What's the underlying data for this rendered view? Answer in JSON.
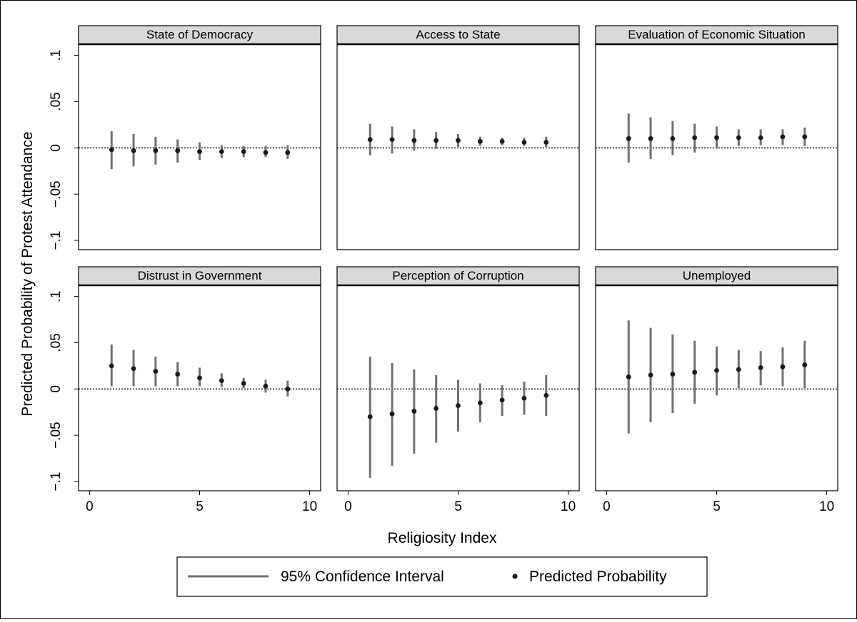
{
  "chart_data": {
    "type": "scatter",
    "layout": "small-multiples",
    "xlabel": "Religiosity Index",
    "ylabel": "Predicted Probability of Protest Attendance",
    "xlim": [
      -0.5,
      10.5
    ],
    "ylim": [
      -0.11,
      0.112
    ],
    "xticks": [
      0,
      5,
      10
    ],
    "xtick_labels": [
      "0",
      "5",
      "10"
    ],
    "yticks": [
      -0.1,
      -0.05,
      0,
      0.05,
      0.1
    ],
    "ytick_labels": [
      "−.1",
      "−.05",
      "0",
      ".05",
      ".1"
    ],
    "reference_line": 0,
    "legend": {
      "position": "bottom",
      "entries": [
        "95% Confidence Interval",
        "Predicted Probability"
      ]
    },
    "colors": {
      "ci": "#707070",
      "point": "#1a1a1a",
      "strip": "#d9d9d9"
    },
    "panels": [
      {
        "title": "State of Democracy",
        "x": [
          1,
          2,
          3,
          4,
          5,
          6,
          7,
          8,
          9
        ],
        "estimate": [
          -0.002,
          -0.003,
          -0.003,
          -0.003,
          -0.004,
          -0.004,
          -0.004,
          -0.005,
          -0.005
        ],
        "lower": [
          -0.023,
          -0.02,
          -0.018,
          -0.016,
          -0.013,
          -0.011,
          -0.01,
          -0.01,
          -0.012
        ],
        "upper": [
          0.018,
          0.015,
          0.012,
          0.009,
          0.006,
          0.003,
          0.002,
          0.002,
          0.003
        ]
      },
      {
        "title": "Access to State",
        "x": [
          1,
          2,
          3,
          4,
          5,
          6,
          7,
          8,
          9
        ],
        "estimate": [
          0.009,
          0.009,
          0.008,
          0.008,
          0.008,
          0.007,
          0.007,
          0.006,
          0.006
        ],
        "lower": [
          -0.008,
          -0.006,
          -0.003,
          -0.001,
          0.001,
          0.002,
          0.003,
          0.002,
          0.001
        ],
        "upper": [
          0.026,
          0.023,
          0.02,
          0.017,
          0.015,
          0.012,
          0.011,
          0.011,
          0.012
        ]
      },
      {
        "title": "Evaluation of Economic Situation",
        "x": [
          1,
          2,
          3,
          4,
          5,
          6,
          7,
          8,
          9
        ],
        "estimate": [
          0.01,
          0.01,
          0.01,
          0.011,
          0.011,
          0.011,
          0.011,
          0.012,
          0.012
        ],
        "lower": [
          -0.016,
          -0.012,
          -0.008,
          -0.005,
          -0.001,
          0.002,
          0.003,
          0.003,
          0.002
        ],
        "upper": [
          0.037,
          0.033,
          0.029,
          0.026,
          0.023,
          0.02,
          0.02,
          0.02,
          0.022
        ]
      },
      {
        "title": "Distrust in Government",
        "x": [
          1,
          2,
          3,
          4,
          5,
          6,
          7,
          8,
          9
        ],
        "estimate": [
          0.025,
          0.022,
          0.019,
          0.016,
          0.012,
          0.009,
          0.006,
          0.003,
          0.0
        ],
        "lower": [
          0.003,
          0.003,
          0.003,
          0.003,
          0.003,
          0.002,
          0.001,
          -0.004,
          -0.008
        ],
        "upper": [
          0.048,
          0.042,
          0.035,
          0.029,
          0.023,
          0.017,
          0.012,
          0.01,
          0.009
        ]
      },
      {
        "title": "Perception of Corruption",
        "x": [
          1,
          2,
          3,
          4,
          5,
          6,
          7,
          8,
          9
        ],
        "estimate": [
          -0.03,
          -0.027,
          -0.024,
          -0.021,
          -0.018,
          -0.015,
          -0.012,
          -0.01,
          -0.007
        ],
        "lower": [
          -0.096,
          -0.083,
          -0.07,
          -0.058,
          -0.046,
          -0.036,
          -0.029,
          -0.028,
          -0.029
        ],
        "upper": [
          0.035,
          0.028,
          0.021,
          0.015,
          0.01,
          0.006,
          0.004,
          0.008,
          0.015
        ]
      },
      {
        "title": "Unemployed",
        "x": [
          1,
          2,
          3,
          4,
          5,
          6,
          7,
          8,
          9
        ],
        "estimate": [
          0.013,
          0.015,
          0.016,
          0.018,
          0.02,
          0.021,
          0.023,
          0.024,
          0.026
        ],
        "lower": [
          -0.048,
          -0.036,
          -0.026,
          -0.016,
          -0.007,
          0.001,
          0.004,
          0.003,
          0.001
        ],
        "upper": [
          0.074,
          0.066,
          0.059,
          0.052,
          0.046,
          0.042,
          0.041,
          0.045,
          0.052
        ]
      }
    ]
  }
}
